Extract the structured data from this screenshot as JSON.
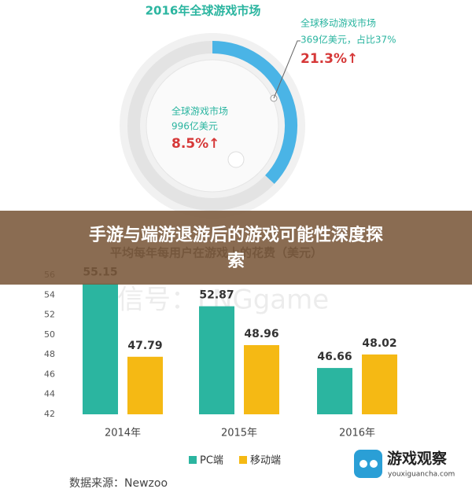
{
  "banner_title": "手游与端游退游后的游戏可能性深度探索",
  "chart_data": [
    {
      "type": "donut",
      "title": "2016年全球游戏市场",
      "values": [
        37
      ],
      "color": "#4ab4e6",
      "annotations": [
        "全球移动游戏市场",
        "369亿美元，占比37%",
        "21.3%↑",
        "全球游戏市场",
        "996亿美元",
        "8.5%↑"
      ]
    },
    {
      "type": "bar",
      "subtitle": "平均每年每用户在游戏上的花费（美元）",
      "categories": [
        "2014年",
        "2015年",
        "2016年"
      ],
      "series": [
        {
          "name": "PC端",
          "color": "#2bb5a0",
          "values": [
            55.15,
            52.87,
            46.66
          ]
        },
        {
          "name": "移动端",
          "color": "#f5b914",
          "values": [
            47.79,
            48.96,
            48.02
          ]
        }
      ],
      "ylim": [
        42,
        56
      ],
      "yticks": [
        42,
        44,
        46,
        48,
        50,
        52,
        54,
        56
      ],
      "watermark": "微信号：LNGgame",
      "source": "数据来源：Newzoo"
    }
  ],
  "logo": {
    "name": "游戏观察",
    "url": "youxiguancha.com"
  }
}
